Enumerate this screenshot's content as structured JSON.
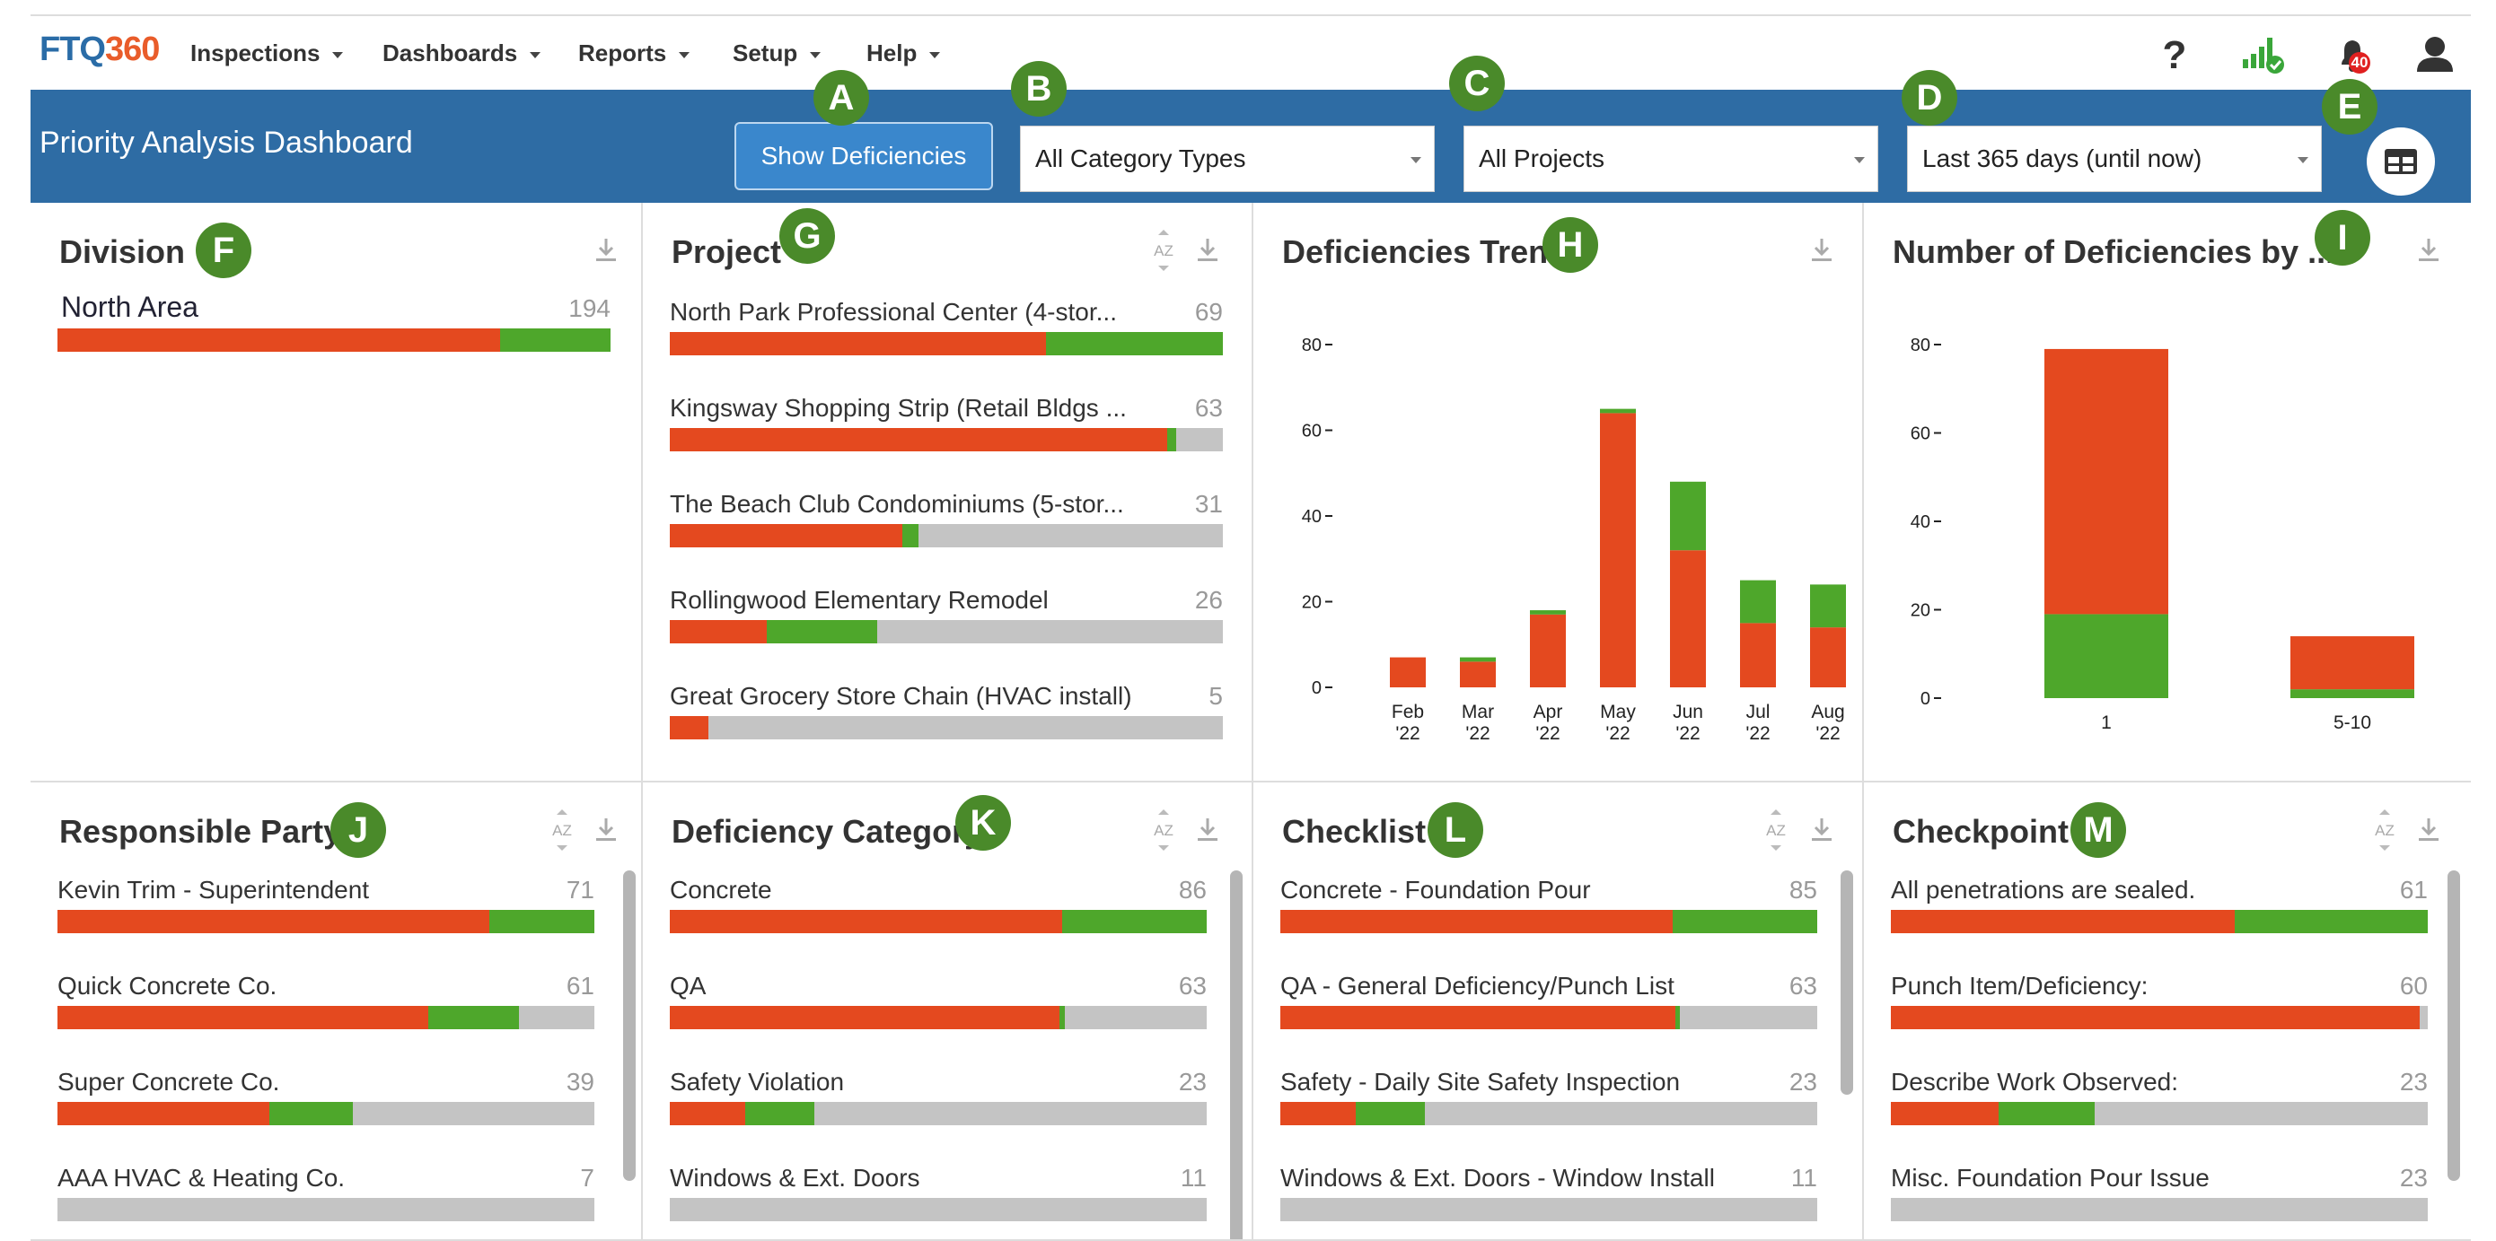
{
  "logo": {
    "part1": "FTQ",
    "part2": "360"
  },
  "nav": {
    "items": [
      {
        "label": "Inspections"
      },
      {
        "label": "Dashboards"
      },
      {
        "label": "Reports"
      },
      {
        "label": "Setup"
      },
      {
        "label": "Help"
      }
    ],
    "notifications_count": "40"
  },
  "header": {
    "title": "Priority Analysis Dashboard",
    "show_button": "Show Deficiencies",
    "category_filter": "All Category Types",
    "project_filter": "All Projects",
    "date_filter": "Last 365 days (until now)"
  },
  "badges": [
    "A",
    "B",
    "C",
    "D",
    "E",
    "F",
    "G",
    "H",
    "I",
    "J",
    "K",
    "L",
    "M"
  ],
  "colors": {
    "open": "#e4491f",
    "closed": "#4ea72b",
    "remaining": "#c4c4c4",
    "header": "#2e6ca4",
    "badge": "#4a8a2a"
  },
  "panels": {
    "division": {
      "title": "Division",
      "rows": [
        {
          "label": "North Area",
          "count": "194",
          "red": 0.8,
          "green": 0.2
        }
      ]
    },
    "project": {
      "title": "Project",
      "rows": [
        {
          "label": "North Park Professional Center (4-stor...",
          "count": "69",
          "red": 0.68,
          "green": 0.32
        },
        {
          "label": "Kingsway Shopping Strip (Retail Bldgs ...",
          "count": "63",
          "red": 0.9,
          "green": 0.015
        },
        {
          "label": "The Beach Club Condominiums (5-stor...",
          "count": "31",
          "red": 0.42,
          "green": 0.03
        },
        {
          "label": "Rollingwood Elementary Remodel",
          "count": "26",
          "red": 0.175,
          "green": 0.2
        },
        {
          "label": "Great Grocery Store Chain (HVAC install)",
          "count": "5",
          "red": 0.07,
          "green": 0
        }
      ]
    },
    "trend": {
      "title": "Deficiencies Trend"
    },
    "number": {
      "title": "Number of Deficiencies by ..."
    },
    "responsible": {
      "title": "Responsible Party",
      "rows": [
        {
          "label": "Kevin Trim - Superintendent",
          "count": "71",
          "red": 0.805,
          "green": 0.195
        },
        {
          "label": "Quick Concrete Co.",
          "count": "61",
          "red": 0.69,
          "green": 0.17
        },
        {
          "label": "Super Concrete Co.",
          "count": "39",
          "red": 0.395,
          "green": 0.155
        },
        {
          "label": "AAA HVAC & Heating Co.",
          "count": "7",
          "red": 0,
          "green": 0
        }
      ]
    },
    "category": {
      "title": "Deficiency Category",
      "rows": [
        {
          "label": "Concrete",
          "count": "86",
          "red": 0.73,
          "green": 0.27
        },
        {
          "label": "QA",
          "count": "63",
          "red": 0.725,
          "green": 0.01
        },
        {
          "label": "Safety Violation",
          "count": "23",
          "red": 0.14,
          "green": 0.13
        },
        {
          "label": "Windows & Ext. Doors",
          "count": "11",
          "red": 0,
          "green": 0
        }
      ]
    },
    "checklist": {
      "title": "Checklist",
      "rows": [
        {
          "label": "Concrete - Foundation Pour",
          "count": "85",
          "red": 0.73,
          "green": 0.27
        },
        {
          "label": "QA - General Deficiency/Punch List",
          "count": "63",
          "red": 0.735,
          "green": 0.01
        },
        {
          "label": "Safety - Daily Site Safety Inspection",
          "count": "23",
          "red": 0.14,
          "green": 0.13
        },
        {
          "label": "Windows & Ext. Doors - Window Install",
          "count": "11",
          "red": 0,
          "green": 0
        }
      ]
    },
    "checkpoint": {
      "title": "Checkpoint",
      "rows": [
        {
          "label": "All penetrations are sealed.",
          "count": "61",
          "red": 0.64,
          "green": 0.36
        },
        {
          "label": "Punch Item/Deficiency:",
          "count": "60",
          "red": 0.985,
          "green": 0
        },
        {
          "label": "Describe Work Observed:",
          "count": "23",
          "red": 0.2,
          "green": 0.18
        },
        {
          "label": "Misc. Foundation Pour Issue",
          "count": "23",
          "red": 0,
          "green": 0
        }
      ]
    }
  },
  "chart_data": [
    {
      "type": "bar",
      "stacked": true,
      "title": "Deficiencies Trend",
      "categories": [
        "Feb '22",
        "Mar '22",
        "Apr '22",
        "May '22",
        "Jun '22",
        "Jul '22",
        "Aug '22"
      ],
      "series": [
        {
          "color": "#e4491f",
          "values": [
            7,
            6,
            17,
            64,
            32,
            15,
            14
          ]
        },
        {
          "color": "#4ea72b",
          "values": [
            0,
            1,
            1,
            1,
            16,
            10,
            10
          ]
        }
      ],
      "yticks": [
        0,
        20,
        40,
        60,
        80
      ],
      "ylim": [
        0,
        80
      ]
    },
    {
      "type": "bar",
      "stacked": true,
      "title": "Number of Deficiencies by ...",
      "categories": [
        "1",
        "5-10"
      ],
      "series": [
        {
          "color": "#4ea72b",
          "values": [
            19,
            2
          ]
        },
        {
          "color": "#e4491f",
          "values": [
            60,
            12
          ]
        }
      ],
      "yticks": [
        0,
        20,
        40,
        60,
        80
      ],
      "ylim": [
        0,
        80
      ]
    }
  ]
}
